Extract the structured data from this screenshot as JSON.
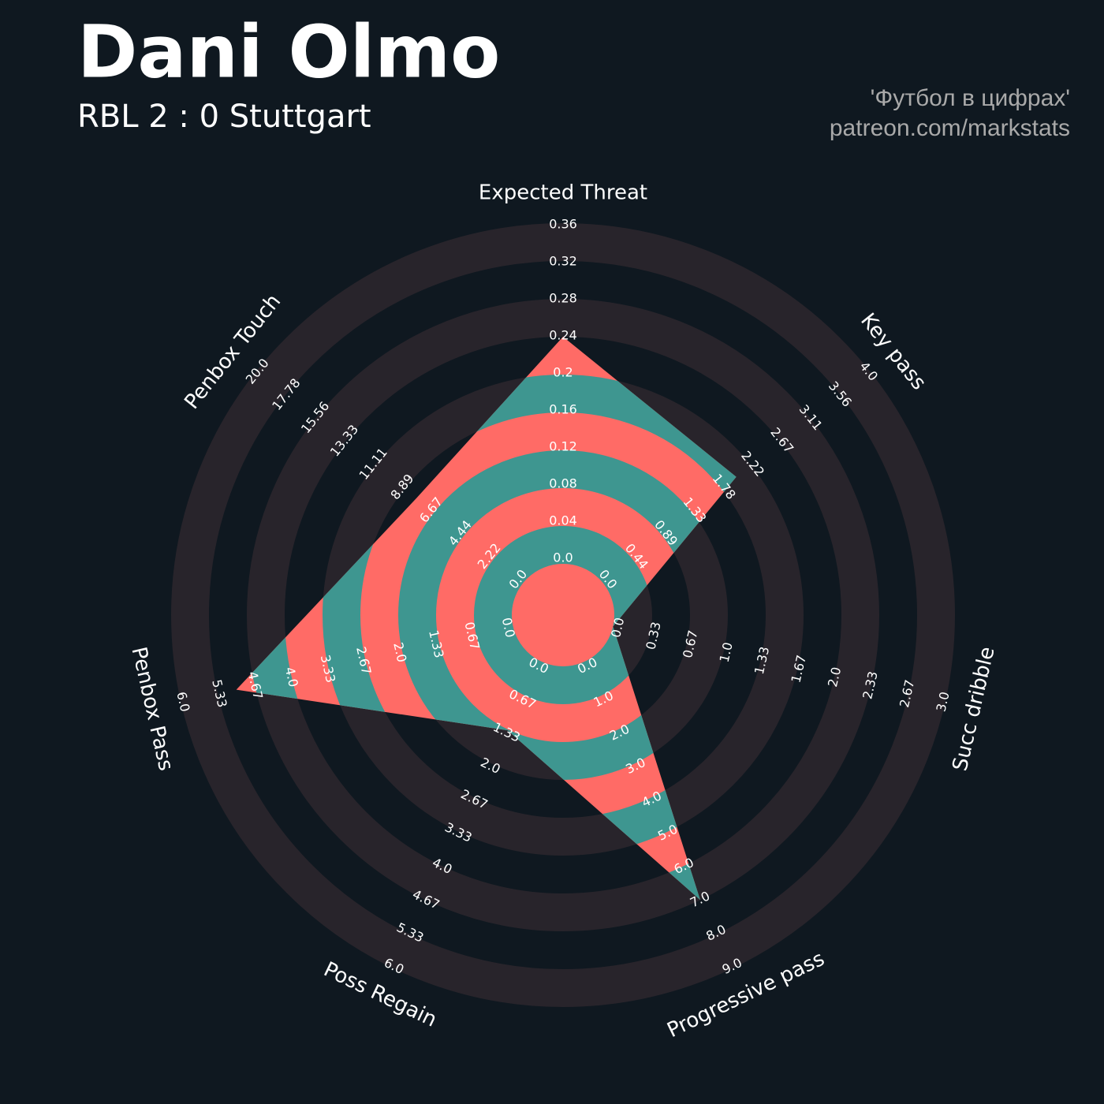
{
  "chart_data": {
    "type": "radar",
    "title": "Dani Olmo",
    "subtitle": "RBL 2 : 0 Stuttgart",
    "credits": [
      "'Футбол в цифрах'",
      "patreon.com/markstats"
    ],
    "colors": {
      "background": "#0f1820",
      "ring": "#28242b",
      "area_band": "#3e9690",
      "area_alt": "#ff6b66",
      "text": "#ffffff",
      "credits": "#a9a9a9"
    },
    "params": [
      {
        "name": "Expected Threat",
        "value": 0.24,
        "lim": [
          0,
          0.36
        ],
        "ticks": [
          {
            "value": 0,
            "label": "0.0"
          },
          0.04,
          0.08,
          0.12,
          0.16,
          0.2,
          0.24,
          0.28,
          0.32,
          0.36
        ]
      },
      {
        "name": "Key pass",
        "value": 2,
        "lim": [
          0,
          4
        ],
        "ticks": [
          {
            "value": 0,
            "label": "0.0"
          },
          0.44,
          0.89,
          1.33,
          1.78,
          2.22,
          2.67,
          3.11,
          3.56,
          {
            "value": 4,
            "label": "4.0"
          }
        ]
      },
      {
        "name": "Succ dribble",
        "value": 0,
        "lim": [
          0,
          3
        ],
        "ticks": [
          {
            "value": 0,
            "label": "0.0"
          },
          0.33,
          0.67,
          {
            "value": 1,
            "label": "1.0"
          },
          1.33,
          1.67,
          {
            "value": 2,
            "label": "2.0"
          },
          2.33,
          2.67,
          {
            "value": 3,
            "label": "3.0"
          }
        ]
      },
      {
        "name": "Progressive pass",
        "value": 7,
        "lim": [
          0,
          9
        ],
        "ticks": [
          {
            "value": 0,
            "label": "0.0"
          },
          {
            "value": 1,
            "label": "1.0"
          },
          {
            "value": 2,
            "label": "2.0"
          },
          {
            "value": 3,
            "label": "3.0"
          },
          {
            "value": 4,
            "label": "4.0"
          },
          {
            "value": 5,
            "label": "5.0"
          },
          {
            "value": 6,
            "label": "6.0"
          },
          {
            "value": 7,
            "label": "7.0"
          },
          {
            "value": 8,
            "label": "8.0"
          },
          {
            "value": 9,
            "label": "9.0"
          }
        ]
      },
      {
        "name": "Poss Regain",
        "value": 1.35,
        "lim": [
          0,
          6
        ],
        "ticks": [
          {
            "value": 0,
            "label": "0.0"
          },
          0.67,
          1.33,
          {
            "value": 2,
            "label": "2.0"
          },
          2.67,
          3.33,
          {
            "value": 4,
            "label": "4.0"
          },
          4.67,
          5.33,
          {
            "value": 6,
            "label": "6.0"
          }
        ]
      },
      {
        "name": "Penbox Pass",
        "value": 5,
        "lim": [
          0,
          6
        ],
        "ticks": [
          {
            "value": 0,
            "label": "0.0"
          },
          0.67,
          1.33,
          {
            "value": 2,
            "label": "2.0"
          },
          2.67,
          3.33,
          {
            "value": 4,
            "label": "4.0"
          },
          4.67,
          5.33,
          {
            "value": 6,
            "label": "6.0"
          }
        ]
      },
      {
        "name": "Penbox Touch",
        "value": 8,
        "lim": [
          0,
          20
        ],
        "ticks": [
          {
            "value": 0,
            "label": "0.0"
          },
          2.22,
          4.44,
          6.67,
          8.89,
          11.11,
          13.33,
          15.56,
          17.78,
          {
            "value": 20,
            "label": "20.0"
          }
        ]
      }
    ]
  }
}
